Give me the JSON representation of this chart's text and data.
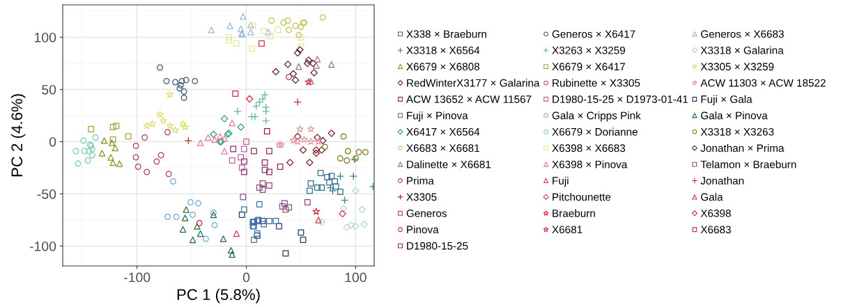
{
  "chart_data": {
    "type": "scatter",
    "xlabel": "PC 1 (5.8%)",
    "ylabel": "PC 2 (4.6%)",
    "xlim": [
      -168,
      117
    ],
    "xticks": [
      -100,
      0,
      100
    ],
    "ylim": [
      -119,
      131
    ],
    "yticks": [
      -100,
      -50,
      0,
      50,
      100
    ],
    "grid": true,
    "legend": "right",
    "series": [
      {
        "name": "X338 × Braeburn",
        "marker": "square",
        "color": "#2f6b8a",
        "x": [
          68,
          74,
          76,
          81,
          82,
          86,
          59,
          58,
          65,
          69,
          78
        ],
        "values": [
          -30,
          -34,
          -39,
          -38,
          -43,
          -48,
          -40,
          -47,
          -44,
          -44,
          -33
        ]
      },
      {
        "name": "Generos × X6417",
        "marker": "circle",
        "color": "#3a5a7a",
        "x": [
          -79,
          -73,
          -65,
          -59,
          -55,
          -47,
          -60,
          -61,
          -57,
          -57
        ],
        "values": [
          71,
          58,
          57,
          58,
          59,
          58,
          54,
          51,
          48,
          42
        ]
      },
      {
        "name": "Generos × X6683",
        "marker": "triangle",
        "color": "#8fb8dc",
        "x": [
          -3,
          -15,
          -5,
          -4,
          -4,
          4,
          4,
          20,
          -32
        ],
        "values": [
          120,
          111,
          108,
          104,
          103,
          112,
          105,
          105,
          107
        ]
      },
      {
        "name": "X3318 × X6564",
        "marker": "cross",
        "color": "#2a8a78",
        "x": [
          86,
          98,
          116,
          90,
          99,
          77,
          79
        ],
        "values": [
          -33,
          -33,
          -43,
          -56,
          -17,
          -44,
          -47
        ]
      },
      {
        "name": "X3263 × X3259",
        "marker": "cross",
        "color": "#5fb3a0",
        "x": [
          17,
          15,
          12,
          9,
          18,
          18,
          -8,
          5,
          8,
          18
        ],
        "values": [
          45,
          41,
          38,
          34,
          33,
          29,
          29,
          24,
          24,
          20
        ]
      },
      {
        "name": "X3318 × Galarina",
        "marker": "diamond",
        "color": "#b5d5cc",
        "x": [
          100,
          106,
          108,
          100,
          96,
          92,
          69,
          89
        ],
        "values": [
          -47,
          -65,
          -79,
          -81,
          -80,
          -82,
          -77,
          -64
        ]
      },
      {
        "name": "X6679 × X6808",
        "marker": "triangle",
        "color": "#8c8c1c",
        "x": [
          -130,
          -123,
          -120,
          -132,
          -124,
          -122,
          -116
        ],
        "values": [
          1,
          -1,
          -6,
          -11,
          -15,
          -20,
          -21
        ]
      },
      {
        "name": "X6679 × X6417",
        "marker": "square",
        "color": "#a3a33a",
        "x": [
          -142,
          -122,
          -119,
          -108,
          -122
        ],
        "values": [
          12,
          14,
          15,
          5,
          2
        ]
      },
      {
        "name": "X3305 × X3259",
        "marker": "star",
        "color": "#dede70",
        "x": [
          -70,
          -79,
          -76,
          -86,
          -91,
          -70,
          -65,
          -58,
          -56
        ],
        "values": [
          45,
          26,
          20,
          17,
          15,
          15,
          11,
          17,
          14
        ]
      },
      {
        "name": "RedWinterX3177 × Galarina",
        "marker": "diamond",
        "color": "#7b1f2a",
        "x": [
          47,
          65,
          78,
          70,
          40,
          58,
          52,
          64,
          64,
          69
        ],
        "values": [
          5,
          4,
          8,
          1,
          -20,
          -20,
          -8,
          -8,
          -11,
          -8
        ]
      },
      {
        "name": "Rubinette × X3305",
        "marker": "circle",
        "color": "#b04060",
        "x": [
          -72,
          -93,
          -101,
          -101,
          -99,
          -91,
          -82,
          -78,
          -71
        ],
        "values": [
          9,
          4,
          -4,
          -15,
          -24,
          -29,
          -19,
          -13,
          -31
        ]
      },
      {
        "name": "ACW 11303 × ACW 18522",
        "marker": "star",
        "color": "#e59aa0",
        "x": [
          49,
          59,
          32,
          43,
          53,
          59,
          66,
          30,
          47
        ],
        "values": [
          12,
          12,
          -3,
          1,
          2,
          0,
          0,
          -3,
          0
        ]
      },
      {
        "name": "ACW 13652 × ACW 11567",
        "marker": "square",
        "color": "#8b2a5a",
        "x": [
          -12,
          -2,
          -2,
          7,
          21,
          17,
          17,
          21,
          31
        ],
        "values": [
          -7,
          -19,
          -29,
          -9,
          -9,
          -20,
          -27,
          -29,
          -24
        ]
      },
      {
        "name": "D1980-15-25 × D1973-01-41",
        "marker": "square",
        "color": "#c060a0",
        "x": [
          -13,
          -5,
          -4,
          0,
          -2
        ],
        "values": [
          -18,
          -15,
          -25,
          0,
          -7
        ]
      },
      {
        "name": "Fuji × Gala",
        "marker": "square",
        "color": "#1e3c64",
        "x": [
          -4,
          7,
          15,
          30,
          50,
          52,
          36,
          10
        ],
        "values": [
          -70,
          -77,
          -76,
          -81,
          -87,
          -94,
          -107,
          -90
        ]
      },
      {
        "name": "Fuji × Pinova",
        "marker": "square",
        "color": "#3b6fa8",
        "x": [
          -2,
          12,
          6,
          7,
          6,
          10,
          11,
          16,
          21,
          27,
          10,
          7
        ],
        "values": [
          -65,
          -60,
          -77,
          -81,
          -81,
          -76,
          -75,
          -79,
          -76,
          -76,
          -88,
          -94
        ]
      },
      {
        "name": "Gala × Cripps Pink",
        "marker": "circle",
        "color": "#6fa8dc",
        "x": [
          -67,
          -51,
          -44,
          -72,
          -64,
          -49,
          -30,
          -29,
          -37
        ],
        "values": [
          -38,
          -58,
          -59,
          -72,
          -72,
          -70,
          -68,
          -80,
          -93
        ]
      },
      {
        "name": "Gala × Pinova",
        "marker": "triangle",
        "color": "#1a6b40",
        "x": [
          -55,
          -56,
          -45,
          -58,
          -42,
          -49,
          -30,
          -21,
          -14,
          -13
        ],
        "values": [
          -65,
          -73,
          -81,
          -84,
          -88,
          -94,
          -70,
          -93,
          -104,
          -108
        ]
      },
      {
        "name": "X6417 × X6564",
        "marker": "diamond",
        "color": "#2e9a78",
        "x": [
          -30,
          -24,
          -20,
          -5,
          -16,
          -17,
          -23
        ],
        "values": [
          7,
          0,
          22,
          14,
          8,
          7,
          0
        ]
      },
      {
        "name": "X6679 × Dorianne",
        "marker": "circle",
        "color": "#7fcab5",
        "x": [
          -149,
          -138,
          -143,
          -142,
          -141,
          -156,
          -148,
          -144,
          -141,
          -145,
          -154
        ],
        "values": [
          1,
          4,
          -3,
          -4,
          -7,
          -9,
          -9,
          -9,
          -13,
          -18,
          -21
        ]
      },
      {
        "name": "X3318 × X3263",
        "marker": "circle",
        "color": "#7a7a10",
        "x": [
          93,
          103,
          109,
          86,
          92,
          100,
          72,
          89
        ],
        "values": [
          -9,
          -10,
          -10,
          -16,
          -18,
          -16,
          -5,
          5
        ]
      },
      {
        "name": "X6683 × X6681",
        "marker": "circle",
        "color": "#c2c25a",
        "x": [
          23,
          34,
          38,
          39,
          45,
          50,
          52,
          53,
          48,
          70
        ],
        "values": [
          116,
          114,
          116,
          107,
          111,
          110,
          114,
          114,
          102,
          119
        ]
      },
      {
        "name": "X6398 × X6683",
        "marker": "square",
        "color": "#e5e59a",
        "x": [
          -16,
          -16,
          -9,
          6,
          16,
          22,
          29,
          5,
          50,
          50
        ],
        "values": [
          100,
          97,
          94,
          111,
          106,
          101,
          107,
          89,
          100,
          91
        ]
      },
      {
        "name": "Jonathan × Prima",
        "marker": "diamond",
        "color": "#5a2040",
        "x": [
          27,
          38,
          43,
          45,
          47,
          49,
          57,
          56,
          61,
          62
        ],
        "values": [
          67,
          74,
          65,
          59,
          85,
          88,
          78,
          75,
          75,
          66
        ]
      },
      {
        "name": "Dalinette × X6681",
        "marker": "triangle",
        "color": "#a06a78",
        "x": [
          65,
          78,
          48,
          64,
          59
        ],
        "values": [
          79,
          74,
          72,
          73,
          58
        ]
      },
      {
        "name": "X6398 × Pinova",
        "marker": "triangle",
        "color": "#e07a8a",
        "x": [
          -42,
          -35,
          -29,
          -13,
          -24,
          -20,
          -20
        ],
        "values": [
          -1,
          4,
          2,
          18,
          5,
          3,
          -9
        ]
      },
      {
        "name": "Telamon × Braeburn",
        "marker": "square",
        "color": "#8a4a78",
        "x": [
          -3,
          15,
          12,
          15,
          21,
          35,
          33,
          36,
          39,
          56
        ],
        "values": [
          -53,
          -40,
          -44,
          -46,
          -42,
          -59,
          -62,
          -65,
          -63,
          -58
        ]
      },
      {
        "name": "Prima",
        "marker": "circle",
        "color": "#c23a4a",
        "x": [
          39
        ],
        "values": [
          62
        ]
      },
      {
        "name": "Fuji",
        "marker": "triangle",
        "color": "#e03040",
        "x": [
          66
        ],
        "values": [
          -75
        ]
      },
      {
        "name": "Jonathan",
        "marker": "cross",
        "color": "#d02030",
        "x": [
          47
        ],
        "values": [
          38
        ]
      },
      {
        "name": "X3305",
        "marker": "cross",
        "color": "#c0202a",
        "x": [
          -53
        ],
        "values": [
          1
        ]
      },
      {
        "name": "Pitchounette",
        "marker": "diamond",
        "color": "#d03040",
        "x": [
          88
        ],
        "values": [
          -69
        ]
      },
      {
        "name": "Gala",
        "marker": "triangle",
        "color": "#d03040",
        "x": [
          -9
        ],
        "values": [
          -88
        ]
      },
      {
        "name": "Generos",
        "marker": "square",
        "color": "#c0303a",
        "x": [
          -10
        ],
        "values": [
          46
        ]
      },
      {
        "name": "Braeburn",
        "marker": "star",
        "color": "#e02030",
        "x": [
          64
        ],
        "values": [
          -67
        ]
      },
      {
        "name": "X6398",
        "marker": "diamond",
        "color": "#d02030",
        "x": [
          3
        ],
        "values": [
          41
        ]
      },
      {
        "name": "Pinova",
        "marker": "circle",
        "color": "#c8283a",
        "x": [
          -43
        ],
        "values": [
          -78
        ]
      },
      {
        "name": "X6681",
        "marker": "star",
        "color": "#c83040",
        "x": [
          57
        ],
        "values": [
          57
        ]
      },
      {
        "name": "X6683",
        "marker": "square",
        "color": "#d03040",
        "x": [
          14
        ],
        "values": [
          94
        ]
      },
      {
        "name": "D1980-15-25",
        "marker": "square",
        "color": "#a01a2a",
        "x": [
          19
        ],
        "values": [
          10
        ]
      }
    ]
  }
}
